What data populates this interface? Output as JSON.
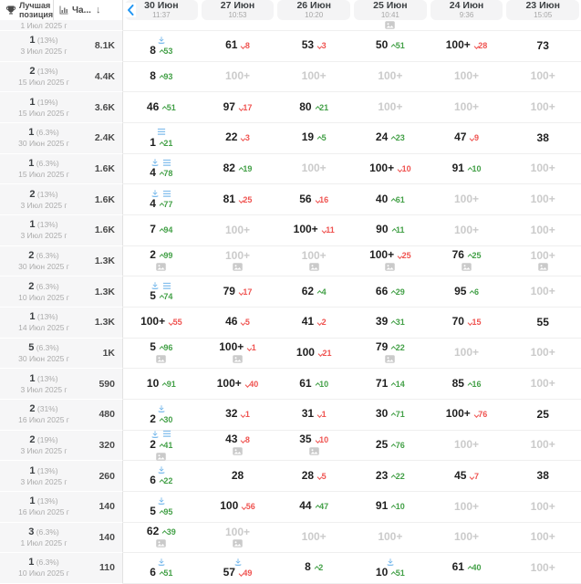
{
  "colors": {
    "up_green": "#43a047",
    "down_red": "#ef5350",
    "muted_gray": "#cbcbcb",
    "accent_blue": "#2196f3",
    "icon_blue": "#6db3ea",
    "image_icon_gray": "#c2c2c2"
  },
  "header": {
    "best_position_label": "Лучшая позиция",
    "frequency_label": "Ча...",
    "sort_arrow": "↓",
    "dates": [
      {
        "date": "30 Июн",
        "time": "11:37"
      },
      {
        "date": "27 Июн",
        "time": "10:53"
      },
      {
        "date": "26 Июн",
        "time": "10:20"
      },
      {
        "date": "25 Июн",
        "time": "10:41"
      },
      {
        "date": "24 Июн",
        "time": "9:36"
      },
      {
        "date": "23 Июн",
        "time": "15:05"
      }
    ]
  },
  "partial_row": {
    "best_date": "1 Июл 2025 г",
    "image_icon_column": 3
  },
  "rows": [
    {
      "pos": "1",
      "pct": "(13%)",
      "date": "3 Июл 2025 г",
      "freq": "8.1K",
      "cells": [
        {
          "v": "8",
          "d": "53",
          "dir": "up",
          "top": [
            "download"
          ]
        },
        {
          "v": "61",
          "d": "8",
          "dir": "down"
        },
        {
          "v": "53",
          "d": "3",
          "dir": "down"
        },
        {
          "v": "50",
          "d": "51",
          "dir": "up"
        },
        {
          "v": "100+",
          "d": "28",
          "dir": "down"
        },
        {
          "v": "73"
        }
      ]
    },
    {
      "pos": "2",
      "pct": "(13%)",
      "date": "15 Июл 2025 г",
      "freq": "4.4K",
      "cells": [
        {
          "v": "8",
          "d": "93",
          "dir": "up"
        },
        {
          "v": "100+"
        },
        {
          "v": "100+"
        },
        {
          "v": "100+"
        },
        {
          "v": "100+"
        },
        {
          "v": "100+"
        }
      ]
    },
    {
      "pos": "1",
      "pct": "(19%)",
      "date": "15 Июл 2025 г",
      "freq": "3.6K",
      "cells": [
        {
          "v": "46",
          "d": "51",
          "dir": "up"
        },
        {
          "v": "97",
          "d": "17",
          "dir": "down"
        },
        {
          "v": "80",
          "d": "21",
          "dir": "up"
        },
        {
          "v": "100+"
        },
        {
          "v": "100+"
        },
        {
          "v": "100+"
        }
      ]
    },
    {
      "pos": "1",
      "pct": "(6.3%)",
      "date": "30 Июн 2025 г",
      "freq": "2.4K",
      "cells": [
        {
          "v": "1",
          "d": "21",
          "dir": "up",
          "top": [
            "list"
          ]
        },
        {
          "v": "22",
          "d": "3",
          "dir": "down"
        },
        {
          "v": "19",
          "d": "5",
          "dir": "up"
        },
        {
          "v": "24",
          "d": "23",
          "dir": "up"
        },
        {
          "v": "47",
          "d": "9",
          "dir": "down"
        },
        {
          "v": "38"
        }
      ]
    },
    {
      "pos": "1",
      "pct": "(6.3%)",
      "date": "15 Июл 2025 г",
      "freq": "1.6K",
      "cells": [
        {
          "v": "4",
          "d": "78",
          "dir": "up",
          "top": [
            "download",
            "list"
          ]
        },
        {
          "v": "82",
          "d": "19",
          "dir": "up"
        },
        {
          "v": "100+"
        },
        {
          "v": "100+",
          "d": "10",
          "dir": "down"
        },
        {
          "v": "91",
          "d": "10",
          "dir": "up"
        },
        {
          "v": "100+"
        }
      ]
    },
    {
      "pos": "2",
      "pct": "(13%)",
      "date": "3 Июл 2025 г",
      "freq": "1.6K",
      "cells": [
        {
          "v": "4",
          "d": "77",
          "dir": "up",
          "top": [
            "download",
            "list"
          ]
        },
        {
          "v": "81",
          "d": "25",
          "dir": "down"
        },
        {
          "v": "56",
          "d": "16",
          "dir": "down"
        },
        {
          "v": "40",
          "d": "61",
          "dir": "up"
        },
        {
          "v": "100+"
        },
        {
          "v": "100+"
        }
      ]
    },
    {
      "pos": "1",
      "pct": "(13%)",
      "date": "3 Июл 2025 г",
      "freq": "1.6K",
      "cells": [
        {
          "v": "7",
          "d": "94",
          "dir": "up"
        },
        {
          "v": "100+"
        },
        {
          "v": "100+",
          "d": "11",
          "dir": "down"
        },
        {
          "v": "90",
          "d": "11",
          "dir": "up"
        },
        {
          "v": "100+"
        },
        {
          "v": "100+"
        }
      ]
    },
    {
      "pos": "2",
      "pct": "(6.3%)",
      "date": "30 Июн 2025 г",
      "freq": "1.3K",
      "cells": [
        {
          "v": "2",
          "d": "99",
          "dir": "up",
          "img": true
        },
        {
          "v": "100+",
          "img": true
        },
        {
          "v": "100+",
          "img": true
        },
        {
          "v": "100+",
          "d": "25",
          "dir": "down",
          "img": true
        },
        {
          "v": "76",
          "d": "25",
          "dir": "up",
          "img": true
        },
        {
          "v": "100+",
          "img": true
        }
      ]
    },
    {
      "pos": "2",
      "pct": "(6.3%)",
      "date": "10 Июл 2025 г",
      "freq": "1.3K",
      "cells": [
        {
          "v": "5",
          "d": "74",
          "dir": "up",
          "top": [
            "download",
            "list"
          ]
        },
        {
          "v": "79",
          "d": "17",
          "dir": "down"
        },
        {
          "v": "62",
          "d": "4",
          "dir": "up"
        },
        {
          "v": "66",
          "d": "29",
          "dir": "up"
        },
        {
          "v": "95",
          "d": "6",
          "dir": "up"
        },
        {
          "v": "100+"
        }
      ]
    },
    {
      "pos": "1",
      "pct": "(13%)",
      "date": "14 Июл 2025 г",
      "freq": "1.3K",
      "cells": [
        {
          "v": "100+",
          "d": "55",
          "dir": "down"
        },
        {
          "v": "46",
          "d": "5",
          "dir": "down"
        },
        {
          "v": "41",
          "d": "2",
          "dir": "down"
        },
        {
          "v": "39",
          "d": "31",
          "dir": "up"
        },
        {
          "v": "70",
          "d": "15",
          "dir": "down"
        },
        {
          "v": "55"
        }
      ]
    },
    {
      "pos": "5",
      "pct": "(6.3%)",
      "date": "30 Июн 2025 г",
      "freq": "1K",
      "cells": [
        {
          "v": "5",
          "d": "96",
          "dir": "up",
          "img": true
        },
        {
          "v": "100+",
          "d": "1",
          "dir": "down",
          "img": true
        },
        {
          "v": "100",
          "d": "21",
          "dir": "down"
        },
        {
          "v": "79",
          "d": "22",
          "dir": "up",
          "img": true
        },
        {
          "v": "100+"
        },
        {
          "v": "100+"
        }
      ]
    },
    {
      "pos": "1",
      "pct": "(13%)",
      "date": "3 Июл 2025 г",
      "freq": "590",
      "cells": [
        {
          "v": "10",
          "d": "91",
          "dir": "up"
        },
        {
          "v": "100+",
          "d": "40",
          "dir": "down"
        },
        {
          "v": "61",
          "d": "10",
          "dir": "up"
        },
        {
          "v": "71",
          "d": "14",
          "dir": "up"
        },
        {
          "v": "85",
          "d": "16",
          "dir": "up"
        },
        {
          "v": "100+"
        }
      ]
    },
    {
      "pos": "2",
      "pct": "(31%)",
      "date": "16 Июл 2025 г",
      "freq": "480",
      "cells": [
        {
          "v": "2",
          "d": "30",
          "dir": "up",
          "top": [
            "download"
          ]
        },
        {
          "v": "32",
          "d": "1",
          "dir": "down"
        },
        {
          "v": "31",
          "d": "1",
          "dir": "down"
        },
        {
          "v": "30",
          "d": "71",
          "dir": "up"
        },
        {
          "v": "100+",
          "d": "76",
          "dir": "down"
        },
        {
          "v": "25"
        }
      ]
    },
    {
      "pos": "2",
      "pct": "(19%)",
      "date": "3 Июл 2025 г",
      "freq": "320",
      "cells": [
        {
          "v": "2",
          "d": "41",
          "dir": "up",
          "top": [
            "download",
            "list"
          ],
          "img": true
        },
        {
          "v": "43",
          "d": "8",
          "dir": "down",
          "img": true
        },
        {
          "v": "35",
          "d": "10",
          "dir": "down",
          "img": true
        },
        {
          "v": "25",
          "d": "76",
          "dir": "up"
        },
        {
          "v": "100+"
        },
        {
          "v": "100+"
        }
      ]
    },
    {
      "pos": "1",
      "pct": "(13%)",
      "date": "3 Июл 2025 г",
      "freq": "260",
      "cells": [
        {
          "v": "6",
          "d": "22",
          "dir": "up",
          "top": [
            "download"
          ]
        },
        {
          "v": "28"
        },
        {
          "v": "28",
          "d": "5",
          "dir": "down"
        },
        {
          "v": "23",
          "d": "22",
          "dir": "up"
        },
        {
          "v": "45",
          "d": "7",
          "dir": "down"
        },
        {
          "v": "38"
        }
      ]
    },
    {
      "pos": "1",
      "pct": "(13%)",
      "date": "16 Июл 2025 г",
      "freq": "140",
      "cells": [
        {
          "v": "5",
          "d": "95",
          "dir": "up",
          "top": [
            "download"
          ]
        },
        {
          "v": "100",
          "d": "56",
          "dir": "down"
        },
        {
          "v": "44",
          "d": "47",
          "dir": "up"
        },
        {
          "v": "91",
          "d": "10",
          "dir": "up"
        },
        {
          "v": "100+"
        },
        {
          "v": "100+"
        }
      ]
    },
    {
      "pos": "3",
      "pct": "(6.3%)",
      "date": "1 Июл 2025 г",
      "freq": "140",
      "cells": [
        {
          "v": "62",
          "d": "39",
          "dir": "up",
          "img": true
        },
        {
          "v": "100+",
          "img": true
        },
        {
          "v": "100+"
        },
        {
          "v": "100+"
        },
        {
          "v": "100+"
        },
        {
          "v": "100+"
        }
      ]
    },
    {
      "pos": "1",
      "pct": "(6.3%)",
      "date": "10 Июл 2025 г",
      "freq": "110",
      "cells": [
        {
          "v": "6",
          "d": "51",
          "dir": "up",
          "top": [
            "download"
          ]
        },
        {
          "v": "57",
          "d": "49",
          "dir": "down",
          "top": [
            "download"
          ]
        },
        {
          "v": "8",
          "d": "2",
          "dir": "up"
        },
        {
          "v": "10",
          "d": "51",
          "dir": "up",
          "top": [
            "download"
          ]
        },
        {
          "v": "61",
          "d": "40",
          "dir": "up"
        },
        {
          "v": "100+"
        }
      ]
    }
  ]
}
